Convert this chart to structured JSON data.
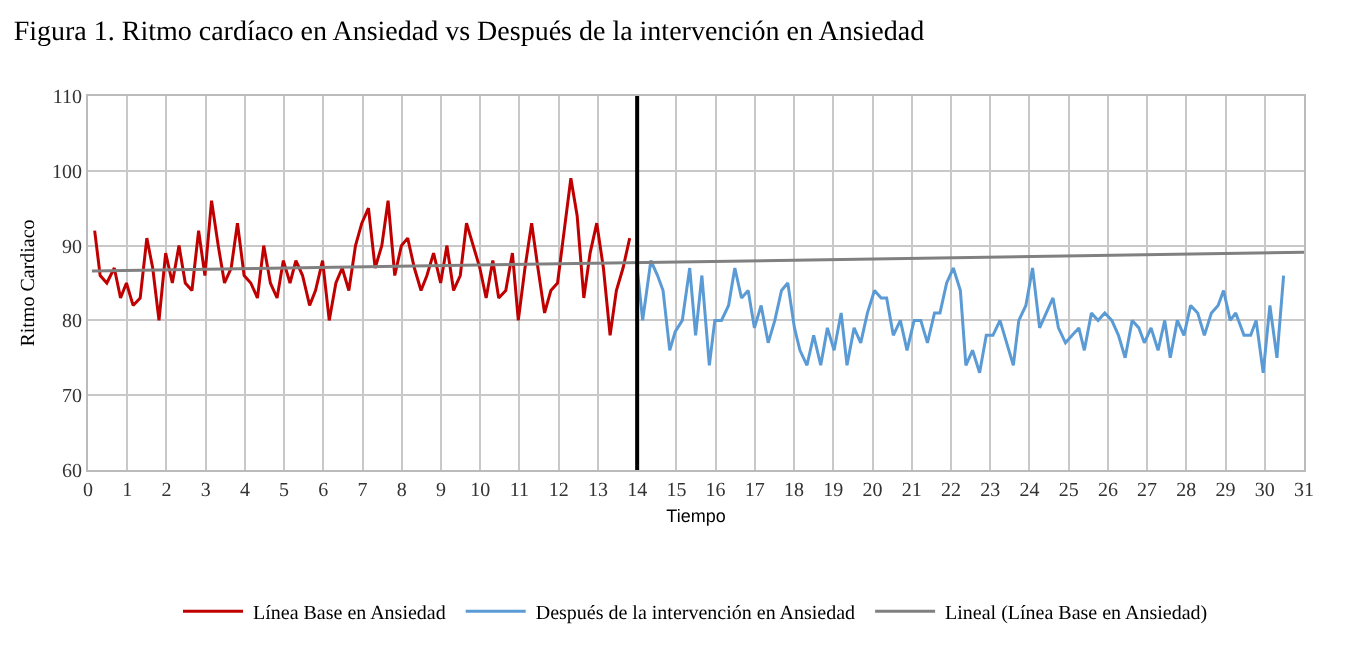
{
  "chart_data": {
    "type": "line",
    "title": "Figura 1. Ritmo cardíaco en Ansiedad vs Después de la intervención en Ansiedad",
    "xlabel": "Tiempo",
    "ylabel": "Ritmo Cardiaco",
    "xlim": [
      0,
      31
    ],
    "xticks": [
      0,
      1,
      2,
      3,
      4,
      5,
      6,
      7,
      8,
      9,
      10,
      11,
      12,
      13,
      14,
      15,
      16,
      17,
      18,
      19,
      20,
      21,
      22,
      23,
      24,
      25,
      26,
      27,
      28,
      29,
      30,
      31
    ],
    "ylim": [
      60,
      110
    ],
    "yticks": [
      60,
      70,
      80,
      90,
      100,
      110
    ],
    "grid": true,
    "legend": "bottom",
    "marker": "none",
    "line_style": "solid",
    "series": [
      {
        "name": "Línea Base en Ansiedad",
        "color": "#c00000",
        "x": [
          0.17,
          0.31,
          0.48,
          0.67,
          0.83,
          0.98,
          1.15,
          1.33,
          1.5,
          1.65,
          1.81,
          1.98,
          2.15,
          2.32,
          2.48,
          2.65,
          2.82,
          2.98,
          3.15,
          3.32,
          3.48,
          3.65,
          3.81,
          3.98,
          4.15,
          4.32,
          4.48,
          4.65,
          4.82,
          4.98,
          5.15,
          5.3,
          5.47,
          5.65,
          5.8,
          5.98,
          6.15,
          6.32,
          6.48,
          6.65,
          6.82,
          6.98,
          7.15,
          7.32,
          7.49,
          7.65,
          7.82,
          7.99,
          8.15,
          8.32,
          8.49,
          8.64,
          8.81,
          8.99,
          9.15,
          9.32,
          9.49,
          9.65,
          9.82,
          9.99,
          10.15,
          10.32,
          10.47,
          10.65,
          10.82,
          10.97,
          11.14,
          11.31,
          11.47,
          11.64,
          11.8,
          11.97,
          12.14,
          12.31,
          12.47,
          12.64,
          12.8,
          12.97,
          13.14,
          13.31,
          13.47,
          13.64,
          13.81
        ],
        "values": [
          92,
          86,
          85,
          87,
          83,
          85,
          82,
          83,
          91,
          87,
          80,
          89,
          85,
          90,
          85,
          84,
          92,
          86,
          96,
          90,
          85,
          87,
          93,
          86,
          85,
          83,
          90,
          85,
          83,
          88,
          85,
          88,
          86,
          82,
          84,
          88,
          80,
          85,
          87,
          84,
          90,
          93,
          95,
          87,
          90,
          96,
          86,
          90,
          91,
          87,
          84,
          86,
          89,
          85,
          90,
          84,
          86,
          93,
          90,
          87,
          83,
          88,
          83,
          84,
          89,
          80,
          87,
          93,
          87,
          81,
          84,
          85,
          92,
          99,
          94,
          83,
          89,
          93,
          87,
          78,
          84,
          87,
          91
        ]
      },
      {
        "name": "Después de la intervención en Ansiedad",
        "color": "#5b9bd5",
        "x": [
          14.0,
          14.14,
          14.35,
          14.52,
          14.66,
          14.83,
          14.97,
          15.15,
          15.34,
          15.49,
          15.65,
          15.84,
          15.98,
          16.15,
          16.33,
          16.49,
          16.66,
          16.83,
          16.99,
          17.16,
          17.34,
          17.51,
          17.68,
          17.84,
          18.01,
          18.15,
          18.33,
          18.5,
          18.68,
          18.85,
          19.02,
          19.2,
          19.35,
          19.53,
          19.7,
          19.87,
          20.05,
          20.22,
          20.36,
          20.53,
          20.71,
          20.88,
          21.06,
          21.23,
          21.4,
          21.58,
          21.72,
          21.89,
          22.06,
          22.24,
          22.38,
          22.55,
          22.73,
          22.9,
          23.07,
          23.25,
          23.42,
          23.59,
          23.73,
          23.91,
          24.08,
          24.26,
          24.43,
          24.6,
          24.74,
          24.92,
          25.09,
          25.26,
          25.4,
          25.58,
          25.75,
          25.92,
          26.1,
          26.27,
          26.44,
          26.62,
          26.79,
          26.93,
          27.1,
          27.28,
          27.45,
          27.59,
          27.77,
          27.94,
          28.11,
          28.29,
          28.46,
          28.64,
          28.81,
          28.95,
          29.12,
          29.26,
          29.47,
          29.64,
          29.78,
          29.96,
          30.13,
          30.31,
          30.48
        ],
        "values": [
          87,
          80,
          88,
          86,
          84,
          76,
          78.5,
          80,
          87,
          78,
          86,
          74,
          80,
          80,
          82,
          87,
          83,
          84,
          79,
          82,
          77,
          80,
          84,
          85,
          79,
          76,
          74,
          78,
          74,
          79,
          76,
          81,
          74,
          79,
          77,
          81,
          84,
          83,
          83,
          78,
          80,
          76,
          80,
          80,
          77,
          81,
          81,
          85,
          87,
          84,
          74,
          76,
          73,
          78,
          78,
          80,
          77,
          74,
          80,
          82,
          87,
          79,
          81,
          83,
          79,
          77,
          78,
          79,
          76,
          81,
          80,
          81,
          80,
          78,
          75,
          80,
          79,
          77,
          79,
          76,
          80,
          75,
          80,
          78,
          82,
          81,
          78,
          81,
          82,
          84,
          80,
          81,
          78,
          78,
          80,
          73,
          82,
          75,
          86
        ]
      },
      {
        "name": "Lineal (Línea Base en Ansiedad)",
        "color": "#808080",
        "x": [
          0.1,
          31
        ],
        "values": [
          86.6,
          89.1
        ]
      }
    ],
    "ref_lines": [
      {
        "axis": "x",
        "value": 14,
        "color": "#000000",
        "line_style": "solid"
      }
    ]
  }
}
